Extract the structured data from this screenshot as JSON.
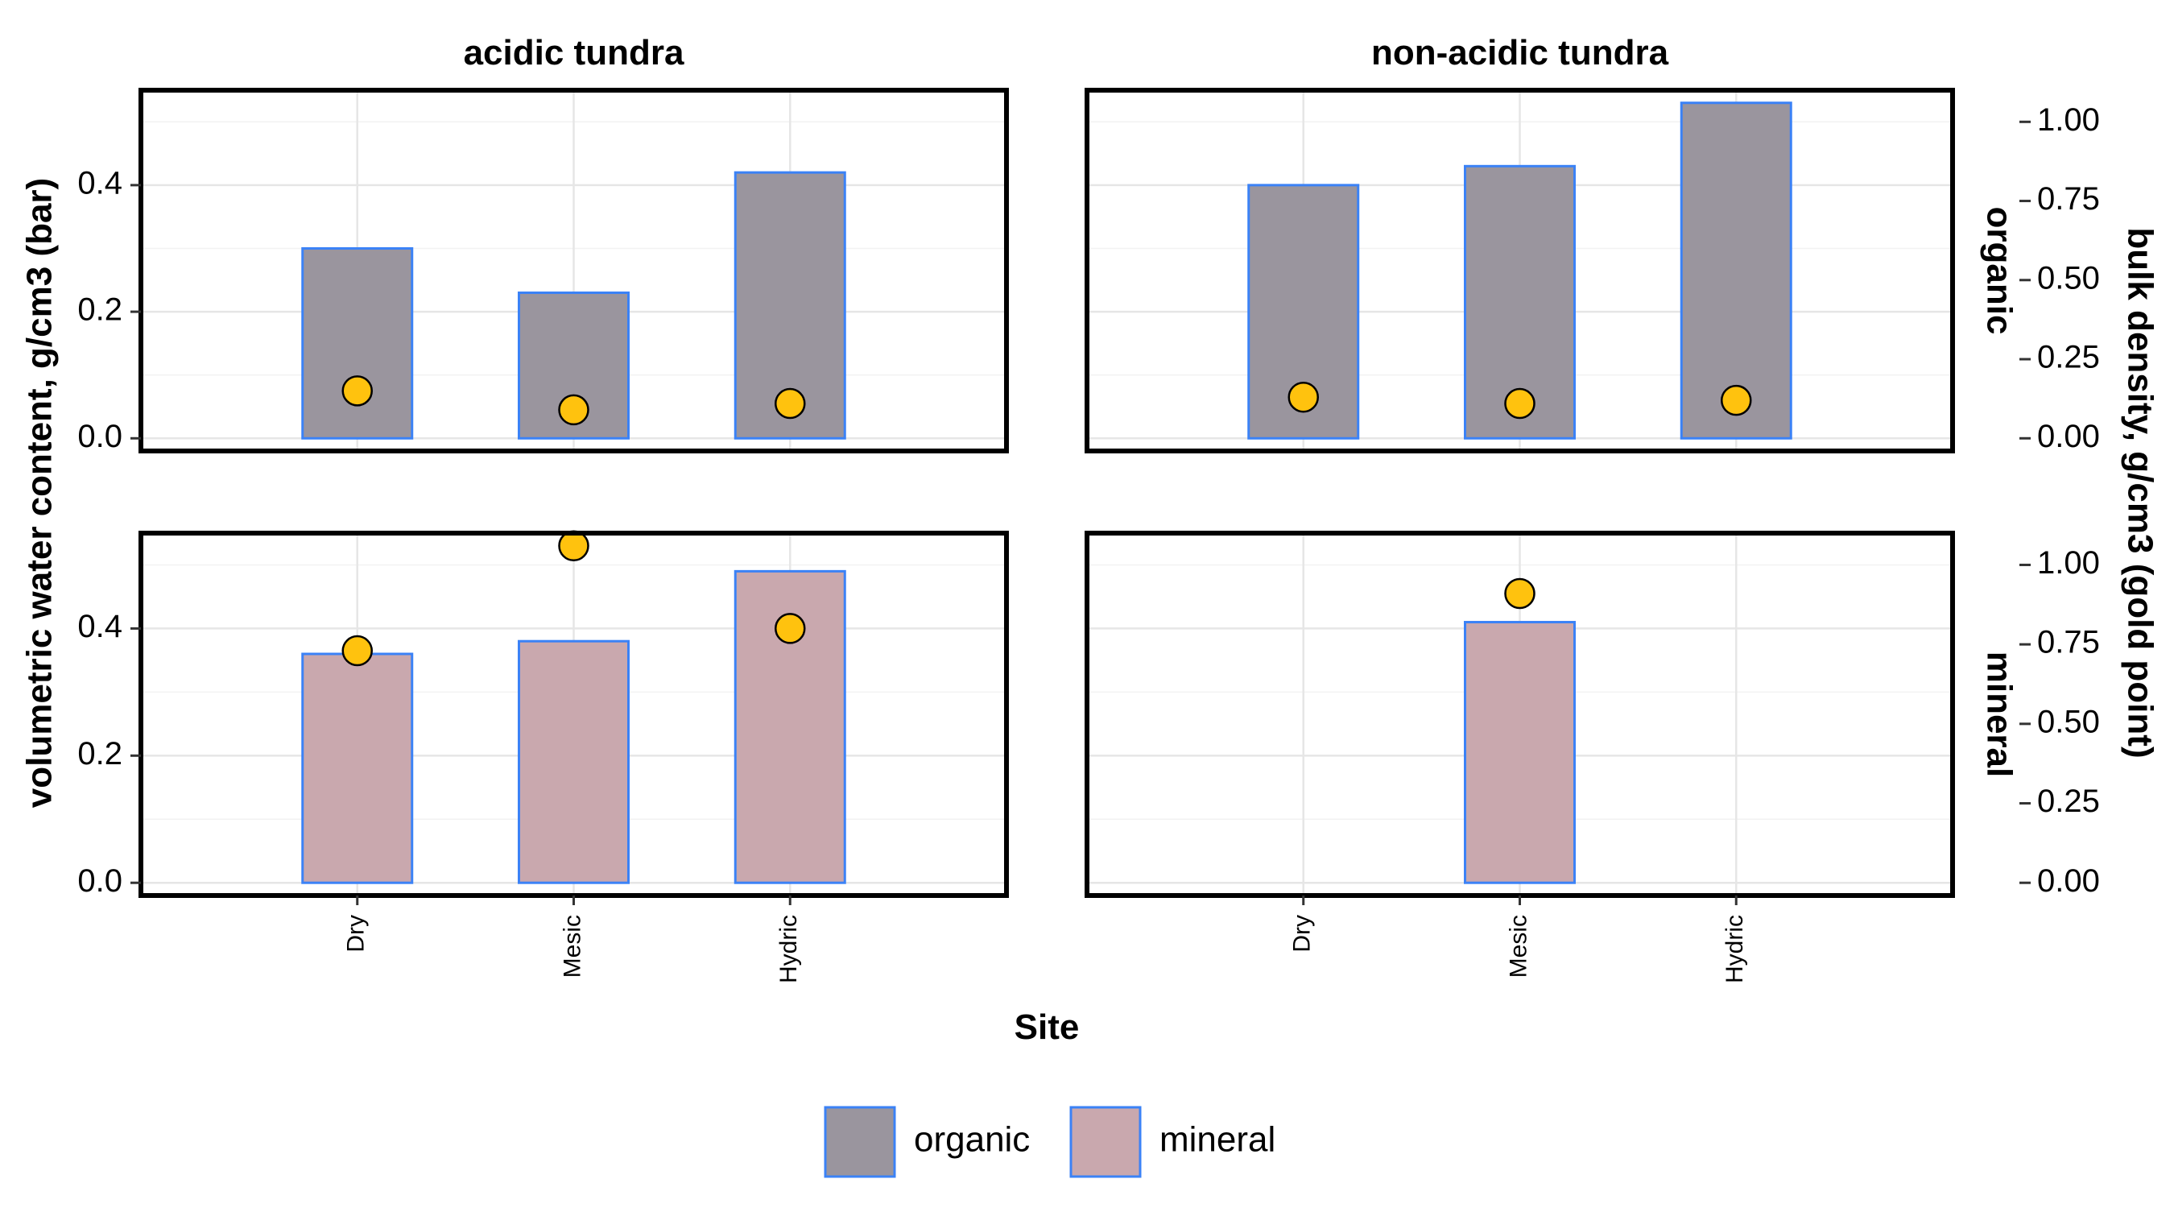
{
  "chart_data": {
    "type": "bar",
    "facet_columns": [
      "acidic tundra",
      "non-acidic tundra"
    ],
    "facet_rows": [
      "organic",
      "mineral"
    ],
    "categories": [
      "Dry",
      "Mesic",
      "Hydric"
    ],
    "xlabel": "Site",
    "ylabel": "volumetric water content, g/cm3 (bar)",
    "y2label": "bulk density, g/cm3 (gold point)",
    "ylim": [
      -0.02,
      0.55
    ],
    "y2lim": [
      -0.04,
      1.1
    ],
    "y_ticks": [
      "0.0",
      "0.2",
      "0.4"
    ],
    "y2_ticks": [
      "0.00",
      "0.25",
      "0.50",
      "0.75",
      "1.00"
    ],
    "legend": {
      "position": "bottom",
      "items": [
        {
          "label": "organic",
          "color": "#9a959e"
        },
        {
          "label": "mineral",
          "color": "#c9a8ae"
        }
      ]
    },
    "colors": {
      "organic": "#9a959e",
      "mineral": "#c9a8ae",
      "bar_outline": "#3b82f6",
      "point": "#ffc20e"
    },
    "panels": [
      {
        "column": "acidic tundra",
        "row": "organic",
        "bars": [
          0.3,
          0.23,
          0.42
        ],
        "points": [
          0.15,
          0.09,
          0.11
        ]
      },
      {
        "column": "non-acidic tundra",
        "row": "organic",
        "bars": [
          0.4,
          0.43,
          0.53
        ],
        "points": [
          0.13,
          0.11,
          0.12
        ]
      },
      {
        "column": "acidic tundra",
        "row": "mineral",
        "bars": [
          0.36,
          0.38,
          0.49
        ],
        "points": [
          0.73,
          1.06,
          0.8
        ]
      },
      {
        "column": "non-acidic tundra",
        "row": "mineral",
        "bars": [
          null,
          0.41,
          null
        ],
        "points": [
          null,
          0.91,
          null
        ]
      }
    ]
  }
}
